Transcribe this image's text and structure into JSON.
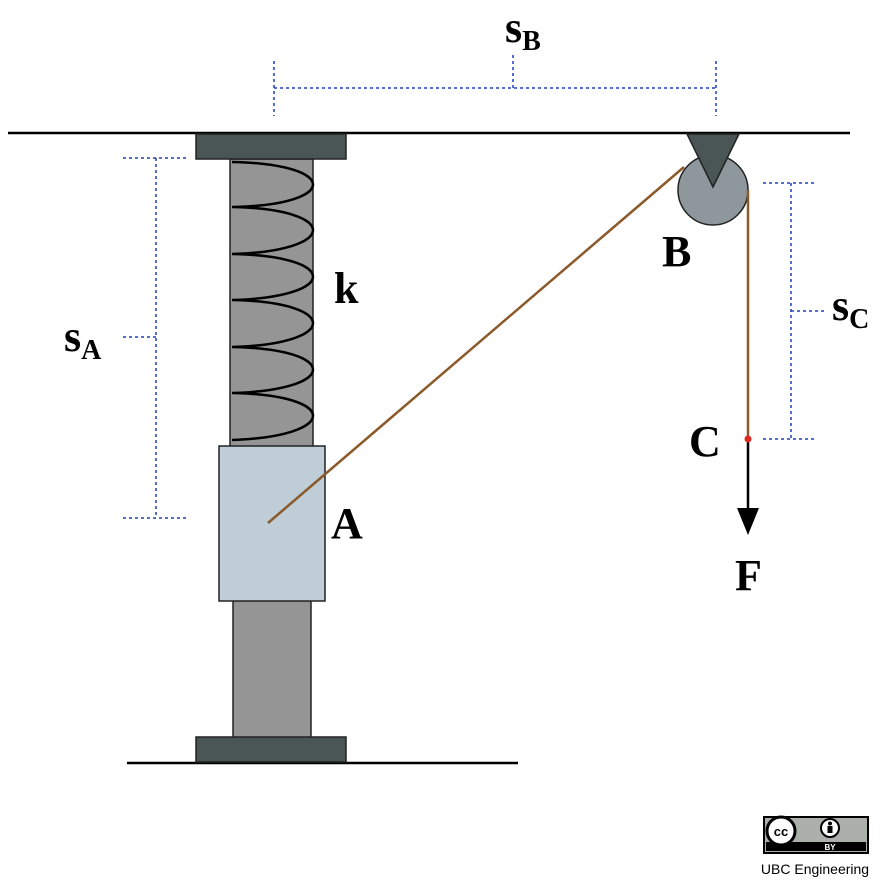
{
  "labels": {
    "sA": {
      "main": "s",
      "sub": "A"
    },
    "sB": {
      "main": "s",
      "sub": "B"
    },
    "sC": {
      "main": "s",
      "sub": "C"
    },
    "spring": "k",
    "block": "A",
    "pulley": "B",
    "point": "C",
    "force": "F"
  },
  "license": {
    "cc": "cc",
    "by": "BY",
    "credit": "UBC Engineering"
  },
  "colors": {
    "cable": "#8B5A2B",
    "dimension": "#1F3FBF",
    "rod": "#959595",
    "block": "#BECDD6",
    "plate": "#4A5655",
    "pulley": "#8E989C",
    "marker": "#E0281E"
  }
}
